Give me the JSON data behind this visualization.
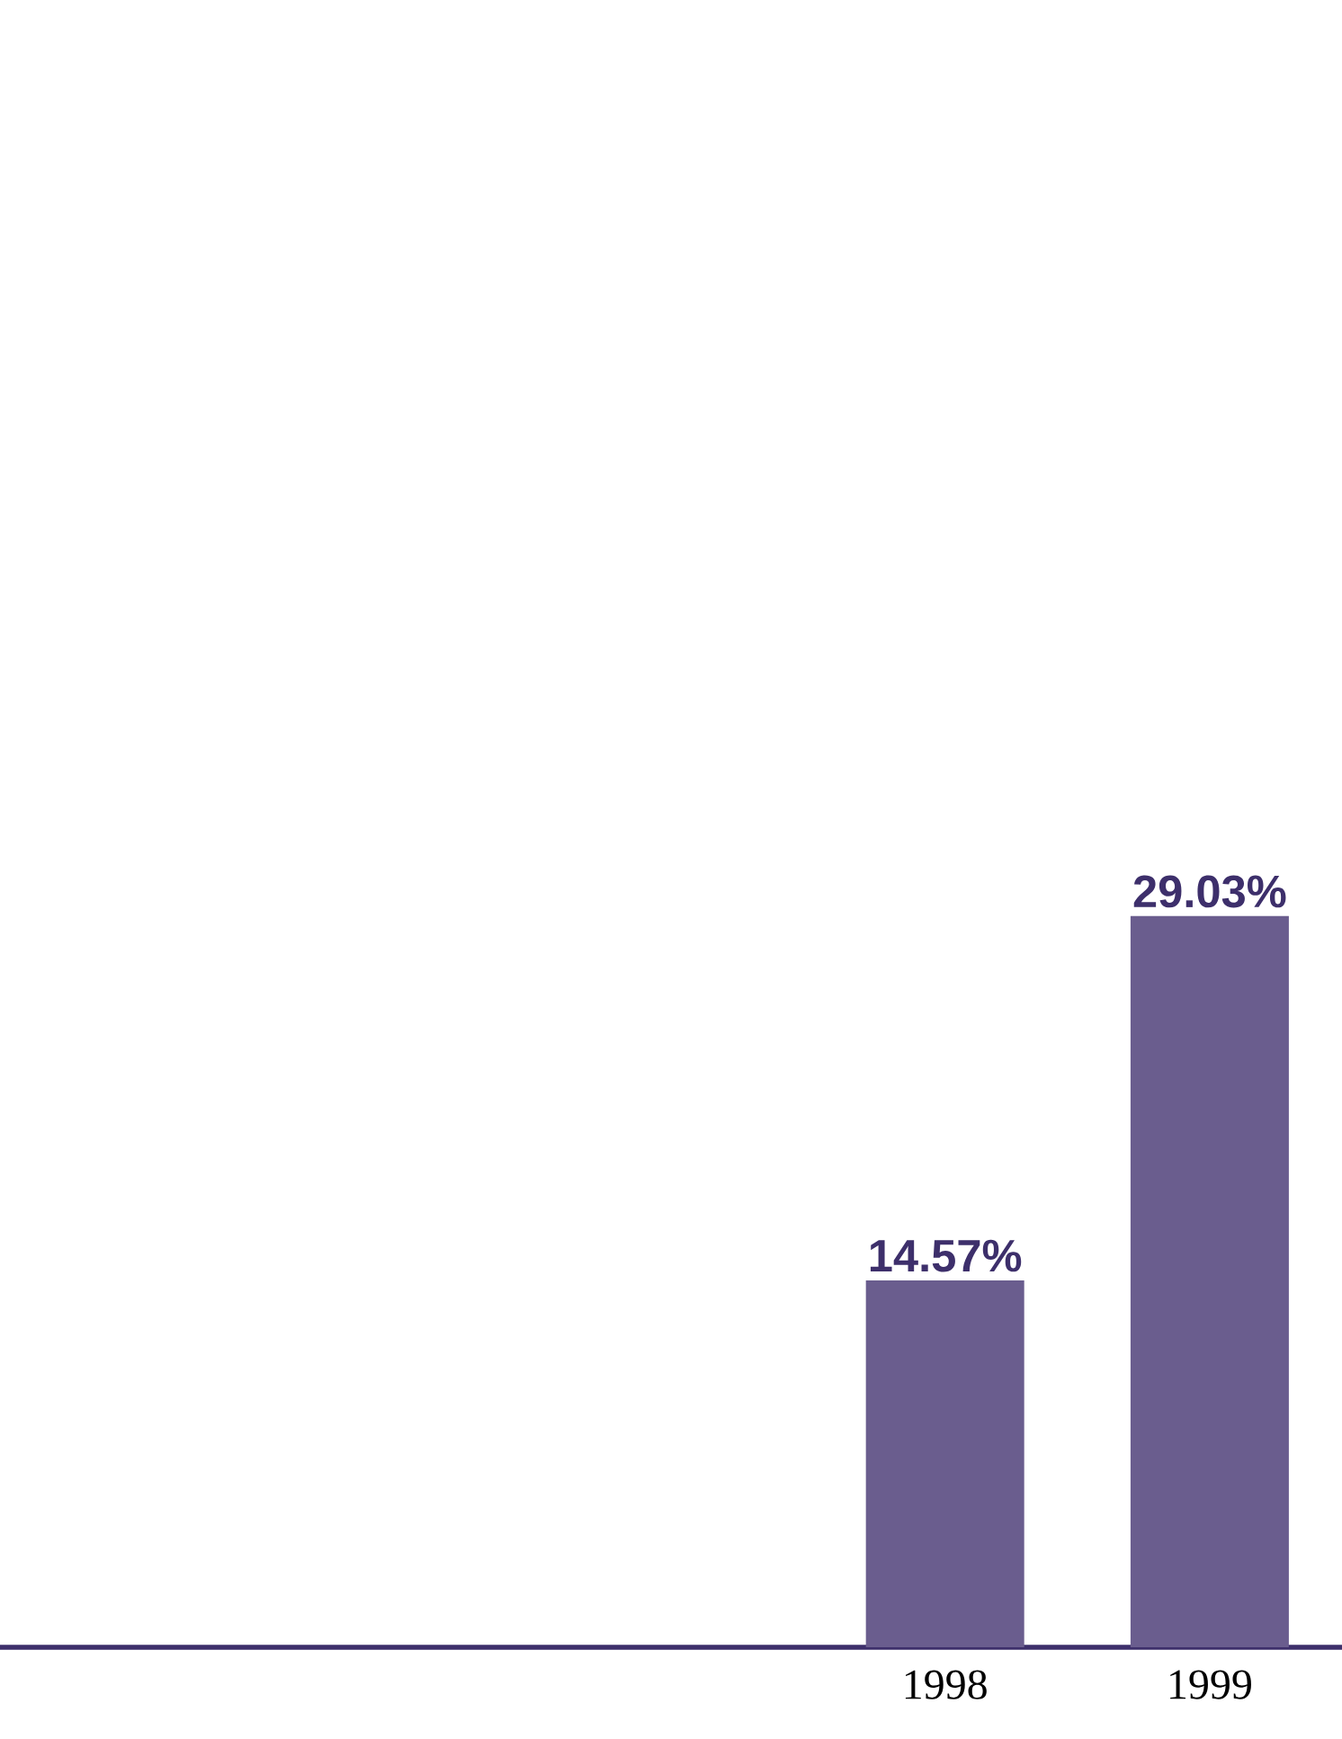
{
  "chart_data": {
    "type": "bar",
    "categories": [
      null,
      null,
      null,
      "1998",
      "1999"
    ],
    "values": [
      null,
      null,
      null,
      14.57,
      29.03
    ],
    "value_labels": [
      null,
      null,
      null,
      "14.57%",
      "29.03%"
    ],
    "color": "#6a5d8e",
    "tick_labels": "x"
  }
}
